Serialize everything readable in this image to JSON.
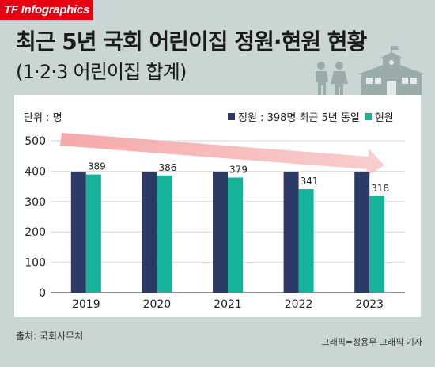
{
  "brand": "TF Infographics",
  "title": "최근 5년 국회 어린이집 정원·현원 현황",
  "subtitle": "(1·2·3 어린이집 합계)",
  "source": "출처: 국회사무처",
  "credit": "그래픽=정용무 그래픽 기자",
  "colors": {
    "capacity": "#2e3a66",
    "enrolled": "#15b39a",
    "arrow": "#f59a9a",
    "background": "#c9d6d3"
  },
  "chart_data": {
    "type": "bar",
    "unit_label": "단위 : 명",
    "categories": [
      "2019",
      "2020",
      "2021",
      "2022",
      "2023"
    ],
    "series": [
      {
        "name": "정원 : 398명 최근 5년 동일",
        "values": [
          398,
          398,
          398,
          398,
          398
        ],
        "color": "#2e3a66"
      },
      {
        "name": "현원",
        "values": [
          389,
          386,
          379,
          341,
          318
        ],
        "color": "#15b39a"
      }
    ],
    "data_labels": [
      "389",
      "386",
      "379",
      "341",
      "318"
    ],
    "ylim": [
      0,
      500
    ],
    "yticks": [
      0,
      100,
      200,
      300,
      400,
      500
    ],
    "grid": true,
    "legend_position": "top-right",
    "annotation": "decreasing trend arrow"
  }
}
